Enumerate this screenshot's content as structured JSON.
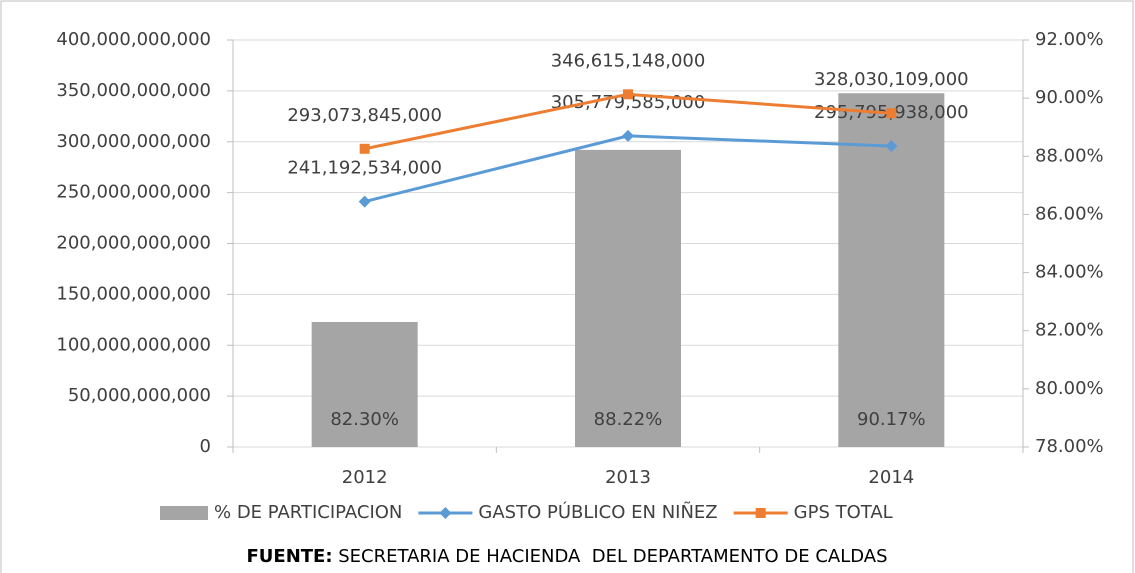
{
  "chart_data": {
    "type": "bar",
    "categories": [
      "2012",
      "2013",
      "2014"
    ],
    "series": [
      {
        "name": "% DE PARTICIPACION",
        "type": "bar",
        "axis": "y2",
        "color": "#a5a5a5",
        "values": [
          82.3,
          88.22,
          90.17
        ],
        "value_labels": [
          "82.30%",
          "88.22%",
          "90.17%"
        ]
      },
      {
        "name": "GASTO PÚBLICO EN NIÑEZ",
        "type": "line",
        "marker": "diamond",
        "color": "#5b9bd5",
        "values": [
          241192534000,
          305779585000,
          295795938000
        ],
        "value_labels": [
          "241,192,534,000",
          "305,779,585,000",
          "295,795,938,000"
        ]
      },
      {
        "name": "GPS TOTAL",
        "type": "line",
        "marker": "square",
        "color": "#ed7d31",
        "values": [
          293073845000,
          346615148000,
          328030109000
        ],
        "value_labels": [
          "293,073,845,000",
          "346,615,148,000",
          "328,030,109,000"
        ]
      }
    ],
    "ylim": [
      0,
      400000000000
    ],
    "yticks": [
      0,
      {
        "value": 50000000000,
        "label": "50,000,000,000"
      },
      {
        "value": 100000000000,
        "label": "100,000,000,000"
      },
      {
        "value": 150000000000,
        "label": "150,000,000,000"
      },
      {
        "value": 200000000000,
        "label": "200,000,000,000"
      },
      {
        "value": 250000000000,
        "label": "250,000,000,000"
      },
      {
        "value": 300000000000,
        "label": "300,000,000,000"
      },
      {
        "value": 350000000000,
        "label": "350,000,000,000"
      },
      {
        "value": 400000000000,
        "label": "400,000,000,000"
      }
    ],
    "y2lim": [
      78,
      92
    ],
    "y2ticks": [
      {
        "value": 78,
        "label": "78.00%"
      },
      {
        "value": 80,
        "label": "80.00%"
      },
      {
        "value": 82,
        "label": "82.00%"
      },
      {
        "value": 84,
        "label": "84.00%"
      },
      {
        "value": 86,
        "label": "86.00%"
      },
      {
        "value": 88,
        "label": "88.00%"
      },
      {
        "value": 90,
        "label": "90.00%"
      },
      {
        "value": 92,
        "label": "92.00%"
      }
    ],
    "grid": true,
    "legend": "bottom",
    "source": {
      "label": "FUENTE:",
      "text": "SECRETARIA DE HACIENDA  DEL DEPARTAMENTO DE CALDAS"
    }
  }
}
